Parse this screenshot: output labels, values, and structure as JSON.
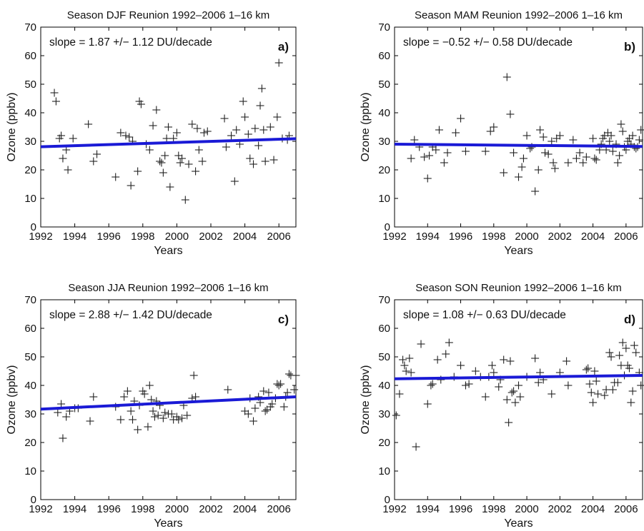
{
  "figure": {
    "colors": {
      "trend": "#1a1ad6",
      "points": "#222222",
      "axes": "#000000"
    },
    "y_label": "Ozone (ppbv)",
    "x_label": "Years"
  },
  "chart_data": [
    {
      "type": "scatter",
      "panel": "a)",
      "title": "Season DJF Reunion 1992–2006 1–16 km",
      "annotation": "slope = 1.87 +/− 1.12 DU/decade",
      "xlabel": "Years",
      "ylabel": "Ozone (ppbv)",
      "xlim": [
        1992,
        2007
      ],
      "ylim": [
        0,
        70
      ],
      "xticks": [
        1992,
        1994,
        1996,
        1998,
        2000,
        2002,
        2004,
        2006
      ],
      "yticks": [
        0,
        10,
        20,
        30,
        40,
        50,
        60,
        70
      ],
      "grid": false,
      "trend": {
        "x": [
          1992,
          2007
        ],
        "y": [
          28.1,
          30.9
        ]
      },
      "points": [
        [
          1992.8,
          47
        ],
        [
          1992.9,
          44
        ],
        [
          1993.1,
          31
        ],
        [
          1993.2,
          32
        ],
        [
          1993.3,
          24
        ],
        [
          1993.5,
          27
        ],
        [
          1993.6,
          20
        ],
        [
          1993.9,
          31
        ],
        [
          1994.8,
          36
        ],
        [
          1995.1,
          23
        ],
        [
          1995.3,
          25.5
        ],
        [
          1996.4,
          17.5
        ],
        [
          1996.7,
          33
        ],
        [
          1997.0,
          32
        ],
        [
          1997.2,
          31.5
        ],
        [
          1997.3,
          14.5
        ],
        [
          1997.4,
          30
        ],
        [
          1997.7,
          19.5
        ],
        [
          1997.8,
          44
        ],
        [
          1997.9,
          43
        ],
        [
          1998.2,
          29
        ],
        [
          1998.4,
          27
        ],
        [
          1998.6,
          35.5
        ],
        [
          1998.8,
          41
        ],
        [
          1999.0,
          23
        ],
        [
          1999.1,
          22.5
        ],
        [
          1999.2,
          19
        ],
        [
          1999.3,
          25
        ],
        [
          1999.4,
          31
        ],
        [
          1999.5,
          35
        ],
        [
          1999.6,
          14
        ],
        [
          1999.8,
          31
        ],
        [
          2000.0,
          33
        ],
        [
          2000.1,
          25
        ],
        [
          2000.2,
          22.5
        ],
        [
          2000.3,
          24
        ],
        [
          2000.5,
          9.5
        ],
        [
          2000.7,
          22
        ],
        [
          2000.9,
          36
        ],
        [
          2001.1,
          19.5
        ],
        [
          2001.2,
          34.5
        ],
        [
          2001.3,
          27
        ],
        [
          2001.5,
          23
        ],
        [
          2001.6,
          33
        ],
        [
          2001.8,
          33.5
        ],
        [
          2002.8,
          38
        ],
        [
          2002.9,
          28
        ],
        [
          2003.2,
          32
        ],
        [
          2003.4,
          16
        ],
        [
          2003.5,
          34
        ],
        [
          2003.7,
          29
        ],
        [
          2003.9,
          44
        ],
        [
          2004.0,
          38.5
        ],
        [
          2004.2,
          32.5
        ],
        [
          2004.3,
          24
        ],
        [
          2004.5,
          22
        ],
        [
          2004.6,
          34.5
        ],
        [
          2004.8,
          28.5
        ],
        [
          2004.9,
          42.5
        ],
        [
          2005.0,
          48.5
        ],
        [
          2005.1,
          34
        ],
        [
          2005.2,
          23
        ],
        [
          2005.5,
          35
        ],
        [
          2005.7,
          23.5
        ],
        [
          2005.9,
          38.5
        ],
        [
          2006.0,
          57.5
        ],
        [
          2006.2,
          31
        ],
        [
          2006.5,
          30.5
        ],
        [
          2006.6,
          32
        ]
      ]
    },
    {
      "type": "scatter",
      "panel": "b)",
      "title": "Season MAM Reunion 1992–2006 1–16 km",
      "annotation": "slope = −0.52 +/− 0.58 DU/decade",
      "xlabel": "Years",
      "ylabel": "Ozone (ppbv)",
      "xlim": [
        1992,
        2007
      ],
      "ylim": [
        0,
        70
      ],
      "xticks": [
        1992,
        1994,
        1996,
        1998,
        2000,
        2002,
        2004,
        2006
      ],
      "yticks": [
        0,
        10,
        20,
        30,
        40,
        50,
        60,
        70
      ],
      "grid": false,
      "trend": {
        "x": [
          1992,
          2007
        ],
        "y": [
          29.0,
          28.2
        ]
      },
      "points": [
        [
          1993.0,
          24
        ],
        [
          1993.2,
          30.5
        ],
        [
          1993.5,
          28
        ],
        [
          1993.8,
          24.5
        ],
        [
          1994.0,
          17
        ],
        [
          1994.1,
          25
        ],
        [
          1994.3,
          28
        ],
        [
          1994.5,
          27
        ],
        [
          1994.7,
          34
        ],
        [
          1995.0,
          22.5
        ],
        [
          1995.2,
          26
        ],
        [
          1995.7,
          33
        ],
        [
          1996.0,
          38
        ],
        [
          1996.3,
          26.5
        ],
        [
          1997.5,
          26.5
        ],
        [
          1997.8,
          33.5
        ],
        [
          1998.0,
          35
        ],
        [
          1998.6,
          19
        ],
        [
          1998.8,
          52.5
        ],
        [
          1999.0,
          39.5
        ],
        [
          1999.2,
          26
        ],
        [
          1999.5,
          17.5
        ],
        [
          1999.7,
          21
        ],
        [
          1999.8,
          24
        ],
        [
          2000.0,
          32
        ],
        [
          2000.2,
          27.5
        ],
        [
          2000.3,
          28
        ],
        [
          2000.5,
          12.5
        ],
        [
          2000.7,
          20
        ],
        [
          2000.8,
          34
        ],
        [
          2001.0,
          31.5
        ],
        [
          2001.1,
          26
        ],
        [
          2001.3,
          25.5
        ],
        [
          2001.5,
          30
        ],
        [
          2001.6,
          22.5
        ],
        [
          2001.7,
          20.5
        ],
        [
          2001.8,
          31
        ],
        [
          2002.0,
          32
        ],
        [
          2002.5,
          22.5
        ],
        [
          2002.8,
          30.5
        ],
        [
          2003.0,
          24
        ],
        [
          2003.2,
          26
        ],
        [
          2003.4,
          22.5
        ],
        [
          2003.6,
          24.5
        ],
        [
          2004.0,
          31
        ],
        [
          2004.1,
          24
        ],
        [
          2004.2,
          23.5
        ],
        [
          2004.4,
          27
        ],
        [
          2004.5,
          29
        ],
        [
          2004.6,
          31
        ],
        [
          2004.7,
          32
        ],
        [
          2004.8,
          27
        ],
        [
          2004.9,
          33
        ],
        [
          2005.0,
          30
        ],
        [
          2005.1,
          32
        ],
        [
          2005.2,
          26.5
        ],
        [
          2005.4,
          29
        ],
        [
          2005.5,
          22.5
        ],
        [
          2005.6,
          25
        ],
        [
          2005.7,
          36
        ],
        [
          2005.8,
          33.5
        ],
        [
          2005.9,
          28
        ],
        [
          2006.0,
          27
        ],
        [
          2006.1,
          30
        ],
        [
          2006.2,
          31
        ],
        [
          2006.3,
          29
        ],
        [
          2006.4,
          32
        ],
        [
          2006.5,
          28
        ],
        [
          2006.6,
          27.5
        ],
        [
          2006.7,
          28
        ],
        [
          2006.8,
          30.5
        ],
        [
          2006.9,
          34
        ]
      ]
    },
    {
      "type": "scatter",
      "panel": "c)",
      "title": "Season JJA Reunion 1992–2006 1–16 km",
      "annotation": "slope = 2.88 +/− 1.42 DU/decade",
      "xlabel": "Years",
      "ylabel": "Ozone (ppbv)",
      "xlim": [
        1992,
        2007
      ],
      "ylim": [
        0,
        70
      ],
      "xticks": [
        1992,
        1994,
        1996,
        1998,
        2000,
        2002,
        2004,
        2006
      ],
      "yticks": [
        0,
        10,
        20,
        30,
        40,
        50,
        60,
        70
      ],
      "grid": false,
      "trend": {
        "x": [
          1992,
          2007
        ],
        "y": [
          31.7,
          36.0
        ]
      },
      "points": [
        [
          1993.0,
          30.5
        ],
        [
          1993.2,
          33.5
        ],
        [
          1993.3,
          21.5
        ],
        [
          1993.5,
          29
        ],
        [
          1993.7,
          31
        ],
        [
          1994.0,
          32
        ],
        [
          1994.2,
          32
        ],
        [
          1994.9,
          27.5
        ],
        [
          1995.1,
          36
        ],
        [
          1996.4,
          32.5
        ],
        [
          1996.7,
          28
        ],
        [
          1996.9,
          36
        ],
        [
          1997.1,
          38
        ],
        [
          1997.3,
          31
        ],
        [
          1997.4,
          28
        ],
        [
          1997.5,
          34.5
        ],
        [
          1997.7,
          24.5
        ],
        [
          1997.8,
          33
        ],
        [
          1998.0,
          38
        ],
        [
          1998.1,
          37
        ],
        [
          1998.3,
          25.5
        ],
        [
          1998.4,
          40
        ],
        [
          1998.5,
          35
        ],
        [
          1998.6,
          31
        ],
        [
          1998.7,
          29
        ],
        [
          1998.8,
          34.5
        ],
        [
          1998.9,
          29.5
        ],
        [
          1999.0,
          33
        ],
        [
          1999.2,
          28.5
        ],
        [
          1999.3,
          30.5
        ],
        [
          1999.5,
          30
        ],
        [
          1999.7,
          30
        ],
        [
          1999.8,
          28
        ],
        [
          2000.0,
          29
        ],
        [
          2000.1,
          28
        ],
        [
          2000.3,
          28.5
        ],
        [
          2000.4,
          33
        ],
        [
          2000.6,
          29.5
        ],
        [
          2000.9,
          35.5
        ],
        [
          2001.0,
          43.5
        ],
        [
          2001.1,
          36
        ],
        [
          2003.0,
          38.5
        ],
        [
          2004.0,
          31
        ],
        [
          2004.2,
          30
        ],
        [
          2004.3,
          35.5
        ],
        [
          2004.5,
          27.5
        ],
        [
          2004.6,
          32
        ],
        [
          2004.8,
          36
        ],
        [
          2004.9,
          34
        ],
        [
          2005.1,
          38
        ],
        [
          2005.2,
          31
        ],
        [
          2005.3,
          31.5
        ],
        [
          2005.4,
          37.5
        ],
        [
          2005.5,
          32.5
        ],
        [
          2005.6,
          33.5
        ],
        [
          2005.8,
          35.5
        ],
        [
          2005.9,
          40.5
        ],
        [
          2006.0,
          40
        ],
        [
          2006.1,
          40.5
        ],
        [
          2006.3,
          32.5
        ],
        [
          2006.4,
          36
        ],
        [
          2006.5,
          37.5
        ],
        [
          2006.6,
          44
        ],
        [
          2006.7,
          43.5
        ],
        [
          2006.9,
          38.5
        ],
        [
          2007.0,
          43.5
        ]
      ]
    },
    {
      "type": "scatter",
      "panel": "d)",
      "title": "Season SON Reunion 1992–2006 1–16 km",
      "annotation": "slope = 1.08 +/− 0.63 DU/decade",
      "xlabel": "Years",
      "ylabel": "Ozone (ppbv)",
      "xlim": [
        1992,
        2007
      ],
      "ylim": [
        0,
        70
      ],
      "xticks": [
        1992,
        1994,
        1996,
        1998,
        2000,
        2002,
        2004,
        2006
      ],
      "yticks": [
        0,
        10,
        20,
        30,
        40,
        50,
        60,
        70
      ],
      "grid": false,
      "trend": {
        "x": [
          1992,
          2007
        ],
        "y": [
          42.3,
          43.5
        ]
      },
      "points": [
        [
          1992.1,
          29.5
        ],
        [
          1992.3,
          37
        ],
        [
          1992.5,
          49
        ],
        [
          1992.6,
          47
        ],
        [
          1992.7,
          45
        ],
        [
          1992.9,
          49.5
        ],
        [
          1993.0,
          44.5
        ],
        [
          1993.3,
          18.5
        ],
        [
          1993.6,
          54.5
        ],
        [
          1994.0,
          33.5
        ],
        [
          1994.2,
          40
        ],
        [
          1994.3,
          40.5
        ],
        [
          1994.6,
          49
        ],
        [
          1994.8,
          42
        ],
        [
          1995.1,
          51
        ],
        [
          1995.3,
          55
        ],
        [
          1995.6,
          43
        ],
        [
          1996.0,
          47
        ],
        [
          1996.3,
          40
        ],
        [
          1996.5,
          40.5
        ],
        [
          1996.9,
          45
        ],
        [
          1997.2,
          43
        ],
        [
          1997.5,
          36
        ],
        [
          1997.7,
          43
        ],
        [
          1997.9,
          47
        ],
        [
          1998.0,
          44.5
        ],
        [
          1998.3,
          39.5
        ],
        [
          1998.4,
          42
        ],
        [
          1998.6,
          49
        ],
        [
          1998.8,
          35
        ],
        [
          1998.9,
          27
        ],
        [
          1999.0,
          48.5
        ],
        [
          1999.1,
          37.5
        ],
        [
          1999.2,
          38
        ],
        [
          1999.3,
          34
        ],
        [
          1999.5,
          40
        ],
        [
          1999.6,
          36
        ],
        [
          2000.0,
          43
        ],
        [
          2000.5,
          49.5
        ],
        [
          2000.7,
          41
        ],
        [
          2000.8,
          44.5
        ],
        [
          2001.0,
          42
        ],
        [
          2001.5,
          37
        ],
        [
          2002.0,
          44.5
        ],
        [
          2002.4,
          48.5
        ],
        [
          2002.5,
          40
        ],
        [
          2003.6,
          45.5
        ],
        [
          2003.7,
          46
        ],
        [
          2003.8,
          40.5
        ],
        [
          2003.9,
          37.5
        ],
        [
          2004.0,
          34
        ],
        [
          2004.1,
          45
        ],
        [
          2004.2,
          41.5
        ],
        [
          2004.3,
          37
        ],
        [
          2004.7,
          36.5
        ],
        [
          2004.8,
          38.5
        ],
        [
          2005.0,
          51.5
        ],
        [
          2005.1,
          50
        ],
        [
          2005.2,
          38.5
        ],
        [
          2005.3,
          41
        ],
        [
          2005.5,
          41
        ],
        [
          2005.6,
          50.5
        ],
        [
          2005.7,
          47
        ],
        [
          2005.8,
          55
        ],
        [
          2005.9,
          43.5
        ],
        [
          2006.0,
          53
        ],
        [
          2006.1,
          47
        ],
        [
          2006.2,
          46
        ],
        [
          2006.3,
          34
        ],
        [
          2006.4,
          38
        ],
        [
          2006.5,
          54
        ],
        [
          2006.6,
          51.5
        ],
        [
          2006.8,
          44.5
        ],
        [
          2006.9,
          40
        ]
      ]
    }
  ]
}
